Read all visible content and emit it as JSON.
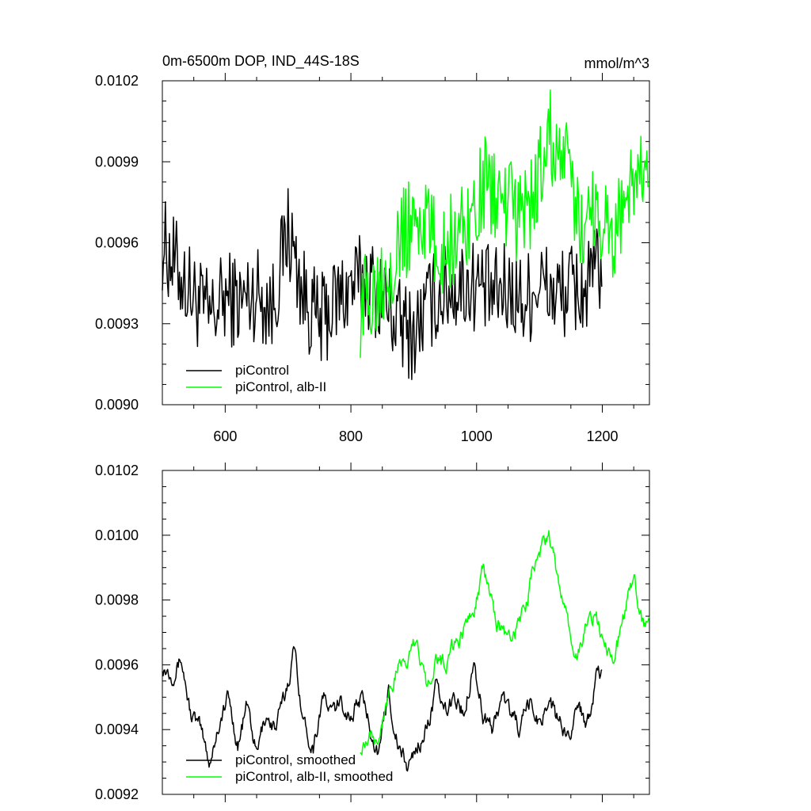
{
  "chart_data": [
    {
      "type": "line",
      "title_left": "0m-6500m DOP, IND_44S-18S",
      "title_right": "mmol/m^3",
      "xlabel": "",
      "ylabel": "",
      "xlim": [
        500,
        1275
      ],
      "ylim": [
        0.009,
        0.0102
      ],
      "xticks": [
        600,
        800,
        1000,
        1200
      ],
      "xtick_labels": [
        "600",
        "800",
        "1000",
        "1200"
      ],
      "yticks": [
        0.009,
        0.0093,
        0.0096,
        0.0099,
        0.0102
      ],
      "ytick_labels": [
        "0.0090",
        "0.0093",
        "0.0096",
        "0.0099",
        "0.0102"
      ],
      "legend_position": "bottom-left",
      "series": [
        {
          "name": "piControl",
          "color": "#000000",
          "x": [
            500,
            525,
            550,
            575,
            600,
            625,
            650,
            675,
            700,
            725,
            750,
            775,
            800,
            825,
            850,
            875,
            900,
            925,
            950,
            975,
            1000,
            1025,
            1050,
            1075,
            1100,
            1125,
            1150,
            1175,
            1200
          ],
          "y": [
            0.0096,
            0.0095,
            0.0094,
            0.00932,
            0.0094,
            0.00938,
            0.00942,
            0.00936,
            0.00965,
            0.0094,
            0.0093,
            0.00938,
            0.00944,
            0.00946,
            0.0094,
            0.0093,
            0.00926,
            0.00938,
            0.00942,
            0.00944,
            0.00945,
            0.0094,
            0.00943,
            0.00938,
            0.00946,
            0.0094,
            0.00943,
            0.00942,
            0.00954
          ]
        },
        {
          "name": "piControl, alb-II",
          "color": "#00ff00",
          "x": [
            815,
            840,
            865,
            890,
            915,
            940,
            965,
            990,
            1015,
            1040,
            1065,
            1090,
            1115,
            1140,
            1165,
            1190,
            1215,
            1240,
            1260,
            1275
          ],
          "y": [
            0.00935,
            0.00945,
            0.00955,
            0.00965,
            0.0097,
            0.00955,
            0.00962,
            0.0097,
            0.00982,
            0.00975,
            0.0097,
            0.00975,
            0.01,
            0.0099,
            0.00965,
            0.00975,
            0.0096,
            0.0098,
            0.00985,
            0.00975
          ]
        }
      ]
    },
    {
      "type": "line",
      "title_left": "",
      "title_right": "",
      "xlabel": "",
      "ylabel": "",
      "xlim": [
        500,
        1275
      ],
      "ylim": [
        0.0092,
        0.0102
      ],
      "xticks": [
        600,
        800,
        1000,
        1200
      ],
      "xtick_labels": [],
      "yticks": [
        0.0092,
        0.0094,
        0.0096,
        0.0098,
        0.01,
        0.0102
      ],
      "ytick_labels": [
        "0.0092",
        "0.0094",
        "0.0096",
        "0.0098",
        "0.0100",
        "0.0102"
      ],
      "legend_position": "bottom-left",
      "series": [
        {
          "name": "piControl, smoothed",
          "color": "#000000",
          "x": [
            500,
            515,
            530,
            545,
            560,
            575,
            590,
            605,
            620,
            635,
            650,
            665,
            680,
            695,
            710,
            725,
            740,
            755,
            770,
            785,
            800,
            815,
            830,
            845,
            860,
            875,
            890,
            905,
            920,
            935,
            950,
            965,
            980,
            995,
            1010,
            1025,
            1040,
            1055,
            1070,
            1085,
            1100,
            1115,
            1130,
            1145,
            1160,
            1175,
            1190,
            1200
          ],
          "y": [
            0.0096,
            0.00958,
            0.00962,
            0.00945,
            0.0094,
            0.0093,
            0.00942,
            0.0095,
            0.00935,
            0.00948,
            0.00932,
            0.00945,
            0.0094,
            0.0095,
            0.00965,
            0.00942,
            0.00935,
            0.0095,
            0.00945,
            0.00948,
            0.00944,
            0.0095,
            0.00942,
            0.00932,
            0.00952,
            0.00935,
            0.00928,
            0.00935,
            0.0094,
            0.00952,
            0.00945,
            0.0095,
            0.00945,
            0.00962,
            0.00945,
            0.0094,
            0.0095,
            0.00945,
            0.0094,
            0.00948,
            0.00942,
            0.0095,
            0.00942,
            0.00938,
            0.00948,
            0.00942,
            0.00955,
            0.00956
          ]
        },
        {
          "name": "piControl, alb-II, smoothed",
          "color": "#00ff00",
          "x": [
            815,
            830,
            845,
            860,
            875,
            890,
            905,
            920,
            935,
            950,
            965,
            980,
            995,
            1010,
            1025,
            1040,
            1055,
            1070,
            1085,
            1100,
            1115,
            1130,
            1145,
            1160,
            1175,
            1190,
            1205,
            1220,
            1235,
            1250,
            1265,
            1275
          ],
          "y": [
            0.00935,
            0.0094,
            0.00938,
            0.00952,
            0.00958,
            0.00962,
            0.00967,
            0.00955,
            0.00962,
            0.0096,
            0.00966,
            0.0097,
            0.00978,
            0.0099,
            0.00978,
            0.0097,
            0.00968,
            0.00972,
            0.00985,
            0.00995,
            0.01,
            0.00985,
            0.00972,
            0.00962,
            0.00972,
            0.00975,
            0.00966,
            0.00962,
            0.00975,
            0.00988,
            0.00972,
            0.00973
          ]
        }
      ]
    }
  ]
}
